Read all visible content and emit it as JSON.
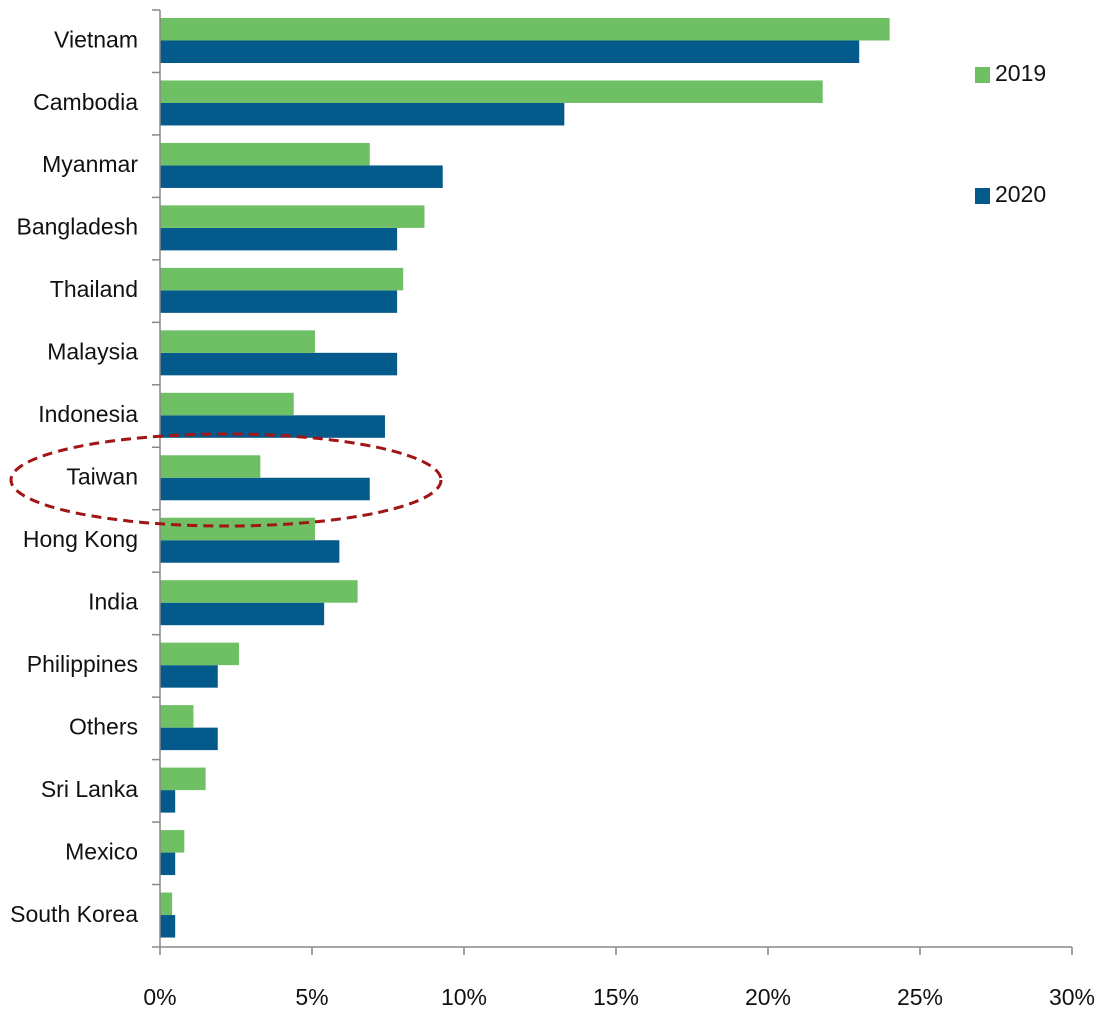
{
  "chart_data": {
    "type": "barh",
    "categories": [
      "Vietnam",
      "Cambodia",
      "Myanmar",
      "Bangladesh",
      "Thailand",
      "Malaysia",
      "Indonesia",
      "Taiwan",
      "Hong Kong",
      "India",
      "Philippines",
      "Others",
      "Sri Lanka",
      "Mexico",
      "South Korea"
    ],
    "series": [
      {
        "name": "2019",
        "color": "#6fbf65",
        "values": [
          24.0,
          21.8,
          6.9,
          8.7,
          8.0,
          5.1,
          4.4,
          3.3,
          5.1,
          6.5,
          2.6,
          1.1,
          1.5,
          0.8,
          0.4
        ]
      },
      {
        "name": "2020",
        "color": "#045a8a",
        "values": [
          23.0,
          13.3,
          9.3,
          7.8,
          7.8,
          7.8,
          7.4,
          6.9,
          5.9,
          5.4,
          1.9,
          1.9,
          0.5,
          0.5,
          0.5
        ]
      }
    ],
    "xlim": [
      0,
      30
    ],
    "xticks": [
      {
        "value": 0,
        "label": "0%"
      },
      {
        "value": 5,
        "label": "5%"
      },
      {
        "value": 10,
        "label": "10%"
      },
      {
        "value": 15,
        "label": "15%"
      },
      {
        "value": 20,
        "label": "20%"
      },
      {
        "value": 25,
        "label": "25%"
      },
      {
        "value": 30,
        "label": "30%"
      }
    ],
    "legend": "right"
  }
}
